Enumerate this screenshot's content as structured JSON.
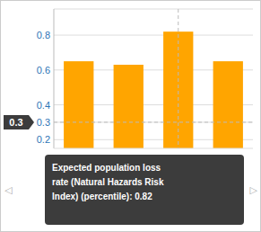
{
  "chart_data": {
    "type": "bar",
    "categories": [
      null,
      null,
      null,
      null
    ],
    "values": [
      0.65,
      0.63,
      0.82,
      0.65
    ],
    "color": "#FFA500",
    "ylim": [
      0.15,
      0.95
    ],
    "yticks": [
      0.2,
      0.3,
      0.4,
      0.6,
      0.8
    ],
    "grid": true,
    "tick_labels": "y",
    "annotations": [
      {
        "text": "0.3",
        "y": 0.3
      },
      {
        "text": "Expected population loss\nrate (Natural Hazards Risk\nIndex) (percentile): 0.82",
        "index": 2
      },
      {
        "text": "◁"
      },
      {
        "text": "▷"
      }
    ]
  }
}
